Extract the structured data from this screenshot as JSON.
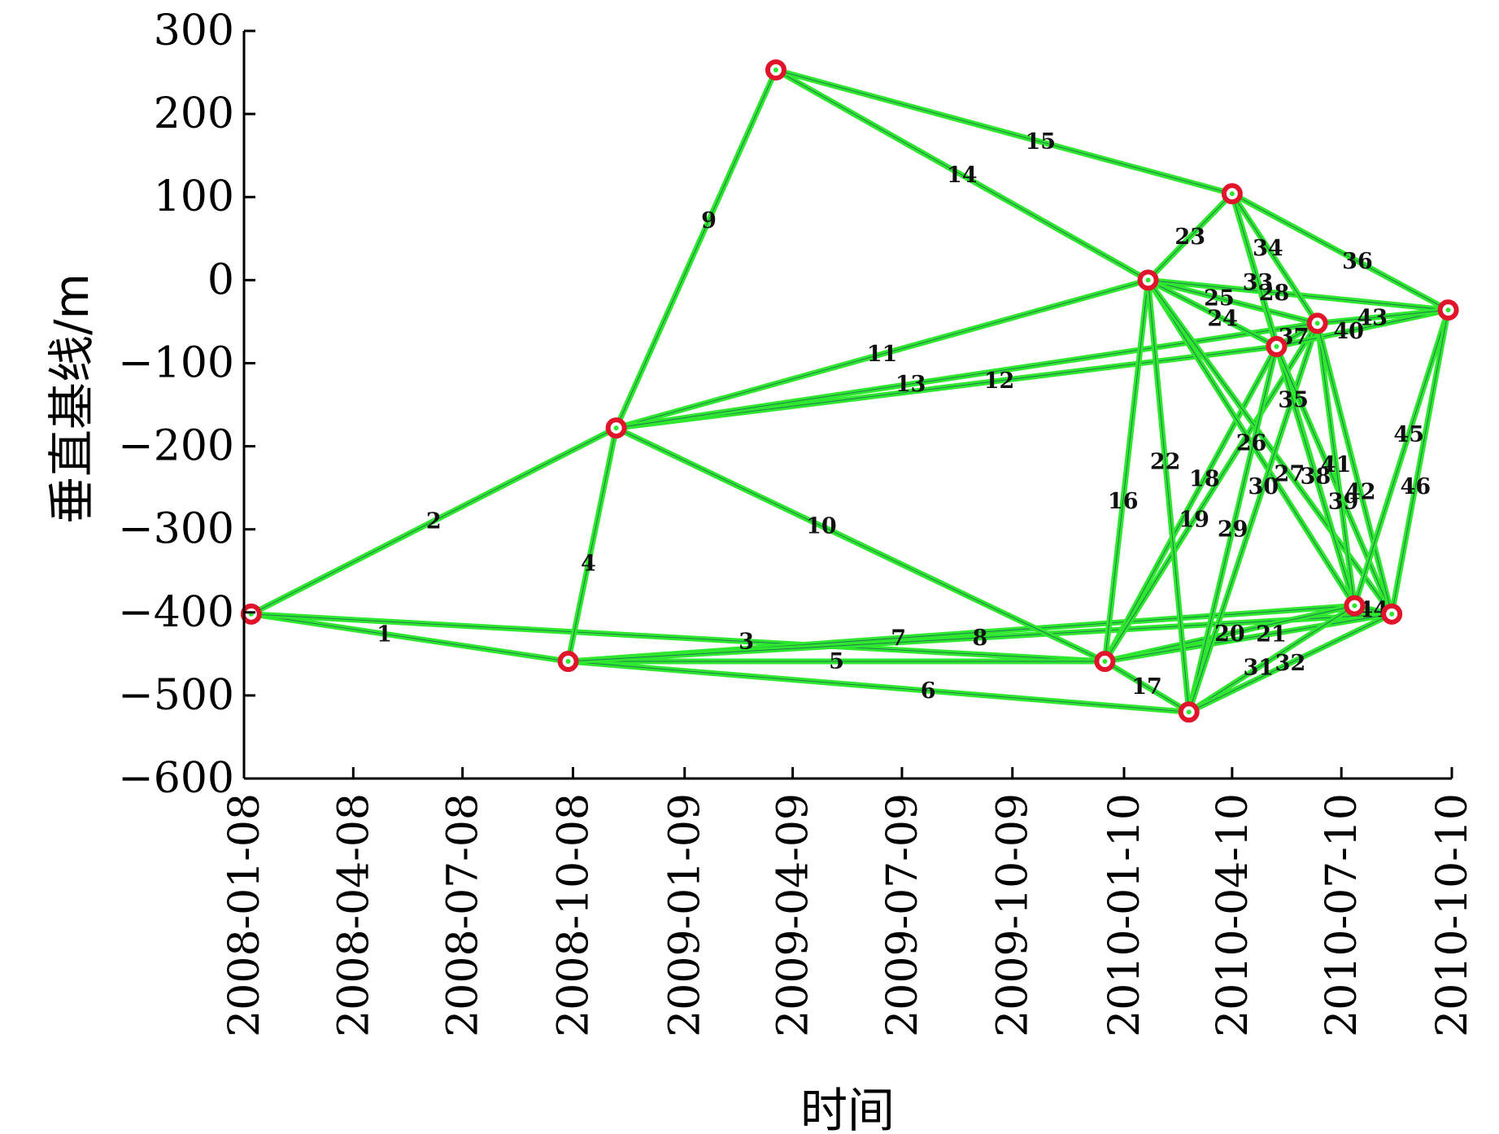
{
  "chart_data": {
    "type": "scatter",
    "title": "",
    "xlabel": "时间",
    "ylabel": "垂直基线/m",
    "ylim": [
      -600,
      300
    ],
    "yticks": [
      "300",
      "200",
      "100",
      "0",
      "−100",
      "−200",
      "−300",
      "−400",
      "−500",
      "−600"
    ],
    "yticks_values": [
      300,
      200,
      100,
      0,
      -100,
      -200,
      -300,
      -400,
      -500,
      -600
    ],
    "xlim": [
      "2008-01-08",
      "2010-10-10"
    ],
    "xticks": [
      "2008-01-08",
      "2008-04-08",
      "2008-07-08",
      "2008-10-08",
      "2009-01-09",
      "2009-04-09",
      "2009-07-09",
      "2009-10-09",
      "2010-01-10",
      "2010-04-10",
      "2010-07-10",
      "2010-10-10"
    ],
    "grid": false,
    "nodes": [
      {
        "date": "2008-01-14",
        "y": -402
      },
      {
        "date": "2008-10-04",
        "y": -459
      },
      {
        "date": "2008-11-13",
        "y": -178
      },
      {
        "date": "2009-03-26",
        "y": 253
      },
      {
        "date": "2009-12-25",
        "y": -459
      },
      {
        "date": "2010-01-30",
        "y": 0
      },
      {
        "date": "2010-03-05",
        "y": -520
      },
      {
        "date": "2010-04-10",
        "y": 104
      },
      {
        "date": "2010-05-17",
        "y": -80
      },
      {
        "date": "2010-06-20",
        "y": -52
      },
      {
        "date": "2010-07-21",
        "y": -392
      },
      {
        "date": "2010-08-21",
        "y": -402
      },
      {
        "date": "2010-10-07",
        "y": -36
      }
    ],
    "edges": [
      {
        "id": "1",
        "from": 0,
        "to": 1
      },
      {
        "id": "2",
        "from": 0,
        "to": 2
      },
      {
        "id": "3",
        "from": 0,
        "to": 4
      },
      {
        "id": "4",
        "from": 1,
        "to": 2
      },
      {
        "id": "5",
        "from": 1,
        "to": 4
      },
      {
        "id": "6",
        "from": 1,
        "to": 6
      },
      {
        "id": "7",
        "from": 1,
        "to": 10
      },
      {
        "id": "8",
        "from": 1,
        "to": 11
      },
      {
        "id": "9",
        "from": 2,
        "to": 3
      },
      {
        "id": "10",
        "from": 2,
        "to": 4
      },
      {
        "id": "11",
        "from": 2,
        "to": 5
      },
      {
        "id": "12",
        "from": 2,
        "to": 8
      },
      {
        "id": "13",
        "from": 2,
        "to": 9
      },
      {
        "id": "14",
        "from": 3,
        "to": 5
      },
      {
        "id": "15",
        "from": 3,
        "to": 7
      },
      {
        "id": "16",
        "from": 4,
        "to": 5
      },
      {
        "id": "17",
        "from": 4,
        "to": 6
      },
      {
        "id": "18",
        "from": 4,
        "to": 8
      },
      {
        "id": "19",
        "from": 4,
        "to": 9
      },
      {
        "id": "20",
        "from": 4,
        "to": 10
      },
      {
        "id": "21",
        "from": 4,
        "to": 11
      },
      {
        "id": "22",
        "from": 5,
        "to": 6
      },
      {
        "id": "23",
        "from": 5,
        "to": 7
      },
      {
        "id": "24",
        "from": 5,
        "to": 8
      },
      {
        "id": "25",
        "from": 5,
        "to": 9
      },
      {
        "id": "26",
        "from": 5,
        "to": 10
      },
      {
        "id": "27",
        "from": 5,
        "to": 11
      },
      {
        "id": "28",
        "from": 5,
        "to": 12
      },
      {
        "id": "29",
        "from": 6,
        "to": 8
      },
      {
        "id": "30",
        "from": 6,
        "to": 9
      },
      {
        "id": "31",
        "from": 6,
        "to": 10
      },
      {
        "id": "32",
        "from": 6,
        "to": 11
      },
      {
        "id": "33",
        "from": 7,
        "to": 8
      },
      {
        "id": "34",
        "from": 7,
        "to": 9
      },
      {
        "id": "35",
        "from": 7,
        "to": 10
      },
      {
        "id": "36",
        "from": 7,
        "to": 12
      },
      {
        "id": "37",
        "from": 8,
        "to": 9
      },
      {
        "id": "38",
        "from": 8,
        "to": 10
      },
      {
        "id": "39",
        "from": 8,
        "to": 11
      },
      {
        "id": "40",
        "from": 8,
        "to": 12
      },
      {
        "id": "41",
        "from": 9,
        "to": 10
      },
      {
        "id": "42",
        "from": 9,
        "to": 11
      },
      {
        "id": "43",
        "from": 9,
        "to": 12
      },
      {
        "id": "44",
        "from": 10,
        "to": 11
      },
      {
        "id": "45",
        "from": 10,
        "to": 12
      },
      {
        "id": "46",
        "from": 11,
        "to": 12
      }
    ]
  },
  "colors": {
    "edge": "#2ee82e",
    "node_ring": "#e0142a",
    "axis": "#000000"
  }
}
